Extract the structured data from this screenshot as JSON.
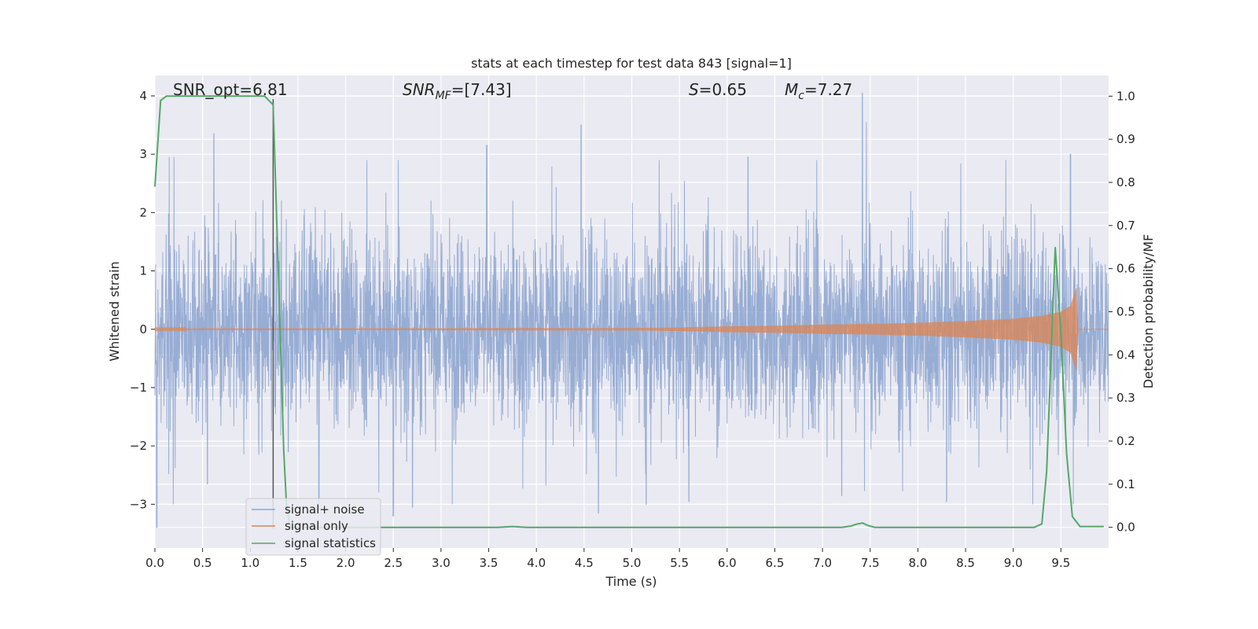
{
  "chart_data": {
    "type": "line",
    "title": "stats at each timestep for test data 843 [signal=1]",
    "xlabel": "Time (s)",
    "ylabel_left": "Whitened strain",
    "ylabel_right": "Detection probability/MF",
    "xlim": [
      0.0,
      10.0
    ],
    "ylim_left": [
      -3.75,
      4.35
    ],
    "ylim_right": [
      -0.048,
      1.048
    ],
    "x_ticks": [
      "0.0",
      "0.5",
      "1.0",
      "1.5",
      "2.0",
      "2.5",
      "3.0",
      "3.5",
      "4.0",
      "4.5",
      "5.0",
      "5.5",
      "6.0",
      "6.5",
      "7.0",
      "7.5",
      "8.0",
      "8.5",
      "9.0",
      "9.5"
    ],
    "x_tick_values": [
      0.0,
      0.5,
      1.0,
      1.5,
      2.0,
      2.5,
      3.0,
      3.5,
      4.0,
      4.5,
      5.0,
      5.5,
      6.0,
      6.5,
      7.0,
      7.5,
      8.0,
      8.5,
      9.0,
      9.5
    ],
    "y_left_ticks": [
      "4",
      "3",
      "2",
      "1",
      "0",
      "−1",
      "−2",
      "−3"
    ],
    "y_left_tick_values": [
      4,
      3,
      2,
      1,
      0,
      -1,
      -2,
      -3
    ],
    "y_right_ticks": [
      "1.0",
      "0.9",
      "0.8",
      "0.7",
      "0.6",
      "0.5",
      "0.4",
      "0.3",
      "0.2",
      "0.1",
      "0.0"
    ],
    "y_right_tick_values": [
      1.0,
      0.9,
      0.8,
      0.7,
      0.6,
      0.5,
      0.4,
      0.3,
      0.2,
      0.1,
      0.0
    ],
    "grid": true,
    "background": "#eaeaf2",
    "annotations": {
      "snr_opt": "SNR_opt=6.81",
      "snr_mf_main": "SNR",
      "snr_mf_sub": "MF",
      "snr_mf_value": "=[7.43]",
      "s_label": "S",
      "s_value": "=0.65",
      "mc_main": "M",
      "mc_sub": "c",
      "mc_value": "=7.27"
    },
    "vertical_marker_x": 1.24,
    "legend": {
      "position": "lower-left",
      "entries": [
        "signal+ noise",
        "signal only",
        "signal statistics"
      ]
    },
    "series": [
      {
        "name": "signal+ noise",
        "axis": "left",
        "color": "#8fa6d0",
        "description_values": {
          "envelope_peaks": [
            [
              0.02,
              -3.4
            ],
            [
              0.15,
              2.95
            ],
            [
              0.2,
              2.95
            ],
            [
              0.55,
              -2.65
            ],
            [
              0.62,
              3.35
            ],
            [
              1.25,
              1.3
            ],
            [
              1.4,
              -2.1
            ],
            [
              1.72,
              -3.1
            ],
            [
              2.5,
              -3.2
            ],
            [
              2.7,
              -3.05
            ],
            [
              3.48,
              3.15
            ],
            [
              4.47,
              3.5
            ],
            [
              4.65,
              -3.15
            ],
            [
              5.15,
              -3.0
            ],
            [
              5.6,
              -2.95
            ],
            [
              6.22,
              2.95
            ],
            [
              7.2,
              -2.85
            ],
            [
              7.42,
              4.05
            ],
            [
              7.46,
              3.55
            ],
            [
              8.3,
              -2.95
            ],
            [
              9.6,
              3.0
            ]
          ]
        }
      },
      {
        "name": "signal only",
        "axis": "left",
        "color": "#dd8452",
        "envelope": [
          [
            0.0,
            0.01
          ],
          [
            5.0,
            0.02
          ],
          [
            5.5,
            0.03
          ],
          [
            6.0,
            0.05
          ],
          [
            6.5,
            0.06
          ],
          [
            7.0,
            0.08
          ],
          [
            7.5,
            0.09
          ],
          [
            8.0,
            0.11
          ],
          [
            8.5,
            0.14
          ],
          [
            9.0,
            0.18
          ],
          [
            9.3,
            0.23
          ],
          [
            9.5,
            0.3
          ],
          [
            9.6,
            0.4
          ],
          [
            9.66,
            0.7
          ],
          [
            9.68,
            0.0
          ],
          [
            10.0,
            0.0
          ]
        ]
      },
      {
        "name": "signal statistics",
        "axis": "right",
        "color": "#55a868",
        "x": [
          0.0,
          0.06,
          0.12,
          0.2,
          0.5,
          1.0,
          1.15,
          1.24,
          1.3,
          1.35,
          1.38,
          1.42,
          1.5,
          2.0,
          3.0,
          3.6,
          3.75,
          3.9,
          4.5,
          5.5,
          6.5,
          7.2,
          7.3,
          7.35,
          7.42,
          7.48,
          7.55,
          8.0,
          9.0,
          9.22,
          9.3,
          9.35,
          9.44,
          9.5,
          9.56,
          9.62,
          9.7,
          9.95
        ],
        "y": [
          0.79,
          0.99,
          1.0,
          1.0,
          1.0,
          1.0,
          1.0,
          0.98,
          0.55,
          0.18,
          0.05,
          0.0,
          0.0,
          0.0,
          0.0,
          0.0,
          0.002,
          0.0,
          0.0,
          0.0,
          0.0,
          0.0,
          0.003,
          0.007,
          0.01,
          0.004,
          0.0,
          0.0,
          0.0,
          0.0,
          0.008,
          0.13,
          0.65,
          0.45,
          0.17,
          0.025,
          0.002,
          0.002
        ]
      }
    ]
  }
}
